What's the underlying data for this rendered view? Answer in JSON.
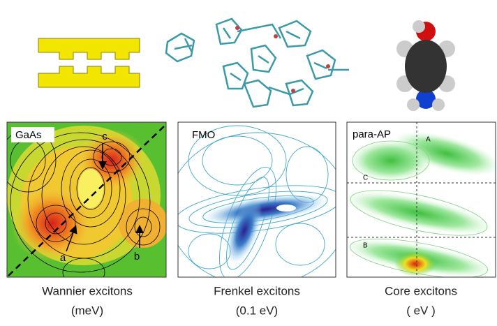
{
  "panels": [
    {
      "label": "GaAs",
      "annotations": [
        "c",
        "a",
        "b"
      ],
      "caption": "Wannier excitons",
      "units": "(meV)"
    },
    {
      "label": "FMO",
      "caption": "Frenkel excitons",
      "units": "(0.1 eV)"
    },
    {
      "label": "para-AP",
      "annotations": [
        "A",
        "C",
        "B"
      ],
      "caption": "Core excitons",
      "units": "( eV )"
    }
  ]
}
